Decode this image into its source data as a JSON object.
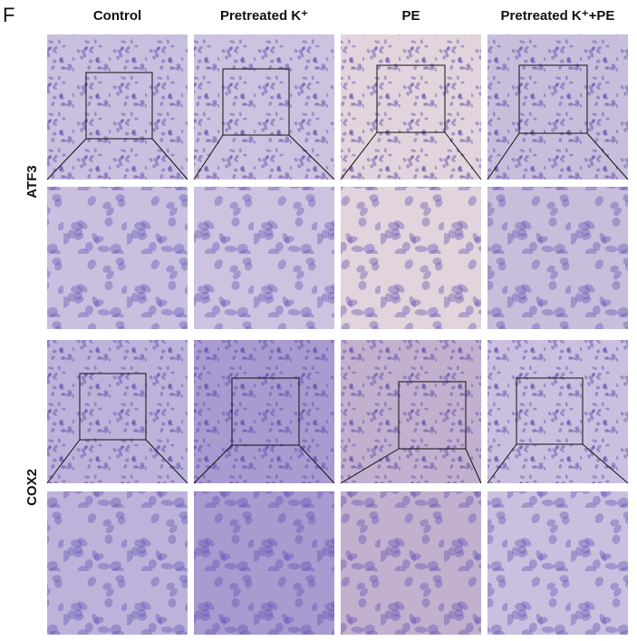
{
  "panel_label": "F",
  "columns": [
    "Control",
    "Pretreated K⁺",
    "PE",
    "Pretreated K⁺+PE"
  ],
  "rows": [
    "ATF3",
    "COX2"
  ]
}
